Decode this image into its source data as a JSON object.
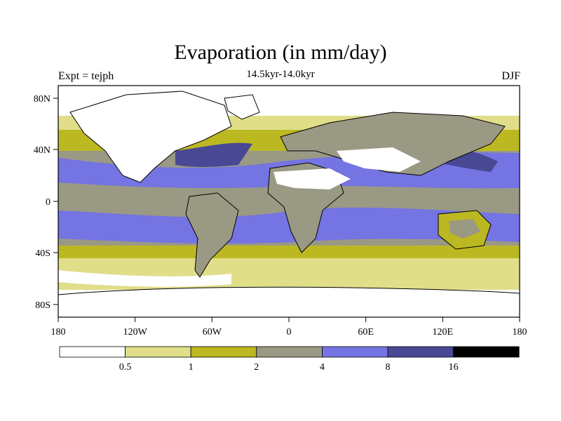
{
  "title": "Evaporation (in mm/day)",
  "subtitle": "14.5kyr-14.0kyr",
  "left_label": "Expt = tejph",
  "right_label": "DJF",
  "colors": {
    "c0": "#ffffff",
    "c1": "#e0de88",
    "c2": "#bcb822",
    "c3": "#9a9984",
    "c4": "#7474e2",
    "c5": "#484894",
    "c6": "#000000",
    "coast": "#000000"
  },
  "map": {
    "lat_ticks": [
      "80N",
      "40N",
      "0",
      "40S",
      "80S"
    ],
    "lon_ticks": [
      "180",
      "120W",
      "60W",
      "0",
      "60E",
      "120E",
      "180"
    ]
  },
  "colorbar": {
    "labels": [
      "0.5",
      "1",
      "2",
      "4",
      "8",
      "16"
    ]
  }
}
